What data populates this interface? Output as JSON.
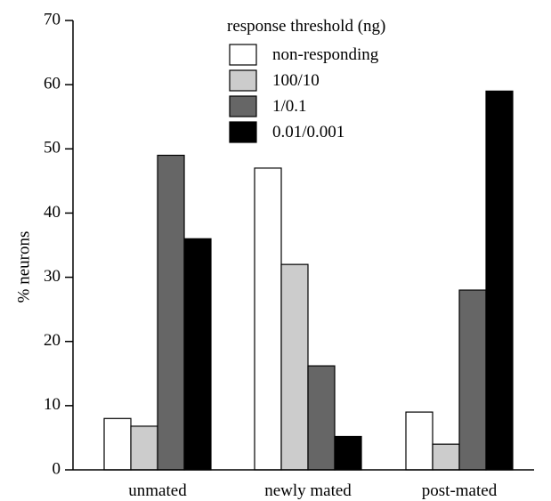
{
  "chart_data": {
    "type": "bar",
    "title": "",
    "xlabel": "",
    "ylabel": "% neurons",
    "ylim": [
      0,
      70
    ],
    "yticks": [
      0,
      10,
      20,
      30,
      40,
      50,
      60,
      70
    ],
    "grid": false,
    "legend": {
      "title": "response threshold (ng)",
      "placement": "top-center"
    },
    "categories": [
      "unmated",
      "newly mated",
      "post-mated"
    ],
    "series": [
      {
        "name": "non-responding",
        "color": "#ffffff",
        "values": [
          8,
          47,
          9
        ]
      },
      {
        "name": "100/10",
        "color": "#cccccc",
        "values": [
          6.8,
          32,
          4
        ]
      },
      {
        "name": "1/0.1",
        "color": "#666666",
        "values": [
          49,
          16.2,
          28
        ]
      },
      {
        "name": "0.01/0.001",
        "color": "#000000",
        "values": [
          36,
          5.2,
          59
        ]
      }
    ]
  }
}
